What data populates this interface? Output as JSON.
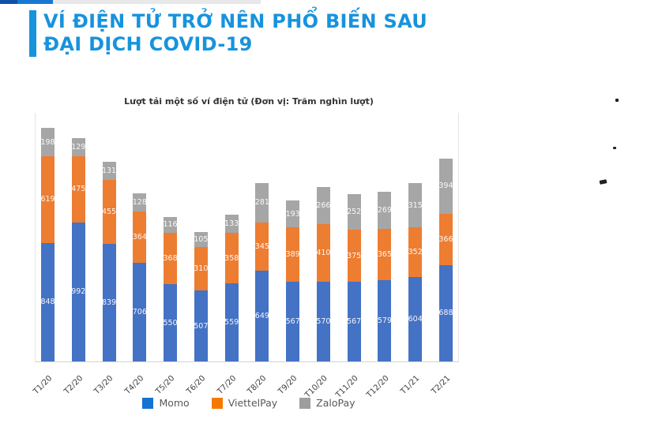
{
  "page": {
    "top_strip": {
      "colors": [
        "#0f4fa8",
        "#1877d2",
        "#e8e8e8"
      ]
    },
    "header": {
      "accent_color": "#1793dd",
      "title_color": "#1793dd",
      "title_lines": [
        "VÍ ĐIỆN TỬ TRỞ NÊN PHỔ BIẾN SAU",
        "ĐẠI DỊCH COVID-19"
      ]
    }
  },
  "chart_data": {
    "type": "bar",
    "stacked": true,
    "title": "Lượt tải một số ví điện tử (Đơn vị: Trăm nghìn lượt)",
    "categories": [
      "T1/20",
      "T2/20",
      "T3/20",
      "T4/20",
      "T5/20",
      "T6/20",
      "T7/20",
      "T8/20",
      "T9/20",
      "T10/20",
      "T11/20",
      "T12/20",
      "T1/21",
      "T2/21"
    ],
    "series": [
      {
        "name": "Momo",
        "color": "#4472c4",
        "legend_color": "#1273d4",
        "values": [
          848,
          992,
          839,
          706,
          550,
          507,
          559,
          649,
          567,
          570,
          567,
          579,
          604,
          688
        ]
      },
      {
        "name": "ViettelPay",
        "color": "#ed7d31",
        "legend_color": "#f57900",
        "values": [
          619,
          475,
          455,
          364,
          368,
          310,
          358,
          345,
          389,
          410,
          375,
          365,
          352,
          366
        ]
      },
      {
        "name": "ZaloPay",
        "color": "#a6a6a6",
        "legend_color": "#9e9e9e",
        "values": [
          198,
          129,
          131,
          128,
          116,
          105,
          133,
          281,
          193,
          266,
          252,
          269,
          315,
          394
        ]
      }
    ],
    "ylim": [
      0,
      1780
    ],
    "data_labels": true,
    "grid": false,
    "legend_position": "bottom"
  }
}
